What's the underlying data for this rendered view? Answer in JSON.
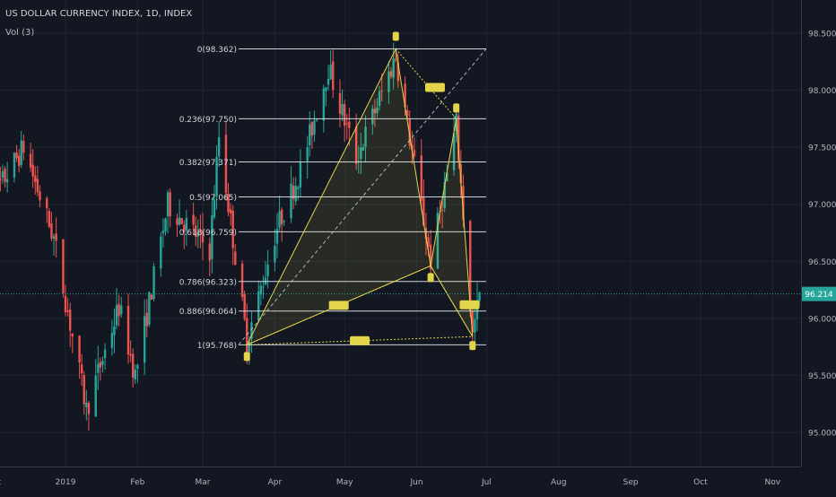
{
  "header": {
    "title": "US DOLLAR CURRENCY INDEX, 1D, INDEX",
    "volume_label": "Vol (3)"
  },
  "colors": {
    "background": "#131722",
    "up": "#26a69a",
    "down": "#ef5350",
    "pattern": "#e3d54a",
    "fib": "#d1d4dc",
    "grid": "#1f2430",
    "axis_text": "#b2b5be",
    "price_tag": "#26a69a"
  },
  "chart_data": {
    "type": "candlestick",
    "y_axis": {
      "ticks": [
        95.0,
        95.5,
        96.0,
        96.5,
        97.0,
        97.5,
        98.0,
        98.5
      ],
      "labels": [
        "95.000",
        "95.500",
        "96.000",
        "96.500",
        "97.000",
        "97.500",
        "98.000",
        "98.500"
      ],
      "side": "right"
    },
    "x_axis": {
      "labels": [
        "Dec",
        "2019",
        "Feb",
        "Mar",
        "Apr",
        "May",
        "Jun",
        "Jul",
        "Aug",
        "Sep",
        "Oct",
        "Nov"
      ]
    },
    "last_price": {
      "value": 96.214,
      "label": "96.214"
    },
    "fib_levels": [
      {
        "ratio": "0",
        "price": 98.362,
        "label": "0(98.362)"
      },
      {
        "ratio": "0.236",
        "price": 97.75,
        "label": "0.236(97.750)"
      },
      {
        "ratio": "0.382",
        "price": 97.371,
        "label": "0.382(97.371)"
      },
      {
        "ratio": "0.5",
        "price": 97.065,
        "label": "0.5(97.065)"
      },
      {
        "ratio": "0.618",
        "price": 96.759,
        "label": "0.618(96.759)"
      },
      {
        "ratio": "0.786",
        "price": 96.323,
        "label": "0.786(96.323)"
      },
      {
        "ratio": "0.886",
        "price": 96.064,
        "label": "0.886(96.064)"
      },
      {
        "ratio": "1",
        "price": 95.768,
        "label": "1(95.768)"
      }
    ],
    "harmonic_pattern": {
      "points": [
        {
          "id": "X",
          "date": "2019-03-20",
          "price": 95.768
        },
        {
          "id": "A",
          "date": "2019-05-23",
          "price": 98.362
        },
        {
          "id": "B",
          "date": "2019-06-07",
          "price": 96.46
        },
        {
          "id": "C",
          "date": "2019-06-18",
          "price": 97.75
        },
        {
          "id": "D",
          "date": "2019-06-25",
          "price": 95.84
        }
      ]
    },
    "candles_summary": "Daily OHLC from Dec 2018 to late Jun 2019; range approx 95.0 to 98.4"
  }
}
